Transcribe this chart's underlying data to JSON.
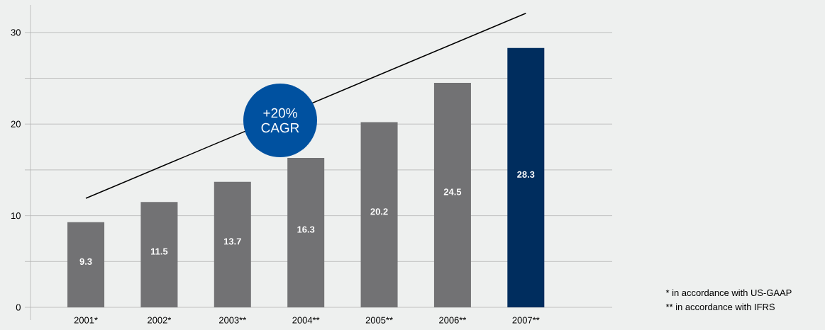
{
  "chart_data": {
    "type": "bar",
    "categories": [
      "2001*",
      "2002*",
      "2003**",
      "2004**",
      "2005**",
      "2006**",
      "2007**"
    ],
    "series": [
      {
        "values": [
          9.3,
          11.5,
          13.7,
          16.3,
          20.2,
          24.5,
          28.3
        ],
        "value_labels": [
          "9.3",
          "11.5",
          "13.7",
          "16.3",
          "20.2",
          "24.5",
          "28.3"
        ],
        "colors": [
          "#727274",
          "#727274",
          "#727274",
          "#727274",
          "#727274",
          "#727274",
          "#002d5e"
        ]
      },
      {
        "type": "line",
        "color": "#000000",
        "values": [
          11.9,
          null,
          null,
          null,
          null,
          null,
          32.1
        ]
      }
    ],
    "ylim": [
      0,
      33
    ],
    "yticks": [
      0,
      {
        "value": 5,
        "label": null
      },
      10,
      {
        "value": 15,
        "label": null
      },
      20,
      {
        "value": 25,
        "label": null
      },
      30
    ],
    "grid": "y",
    "annotations": [
      "+20% CAGR",
      "* in accordance with US-GAAP",
      "** in accordance with IFRS"
    ]
  }
}
